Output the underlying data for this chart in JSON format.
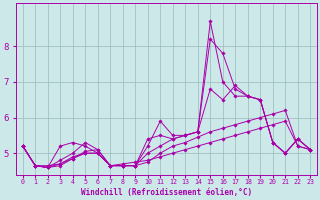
{
  "xlabel": "Windchill (Refroidissement éolien,°C)",
  "background_color": "#cce8e8",
  "line_color": "#aa00aa",
  "grid_color": "#99bbbb",
  "x": [
    0,
    1,
    2,
    3,
    4,
    5,
    6,
    7,
    8,
    9,
    10,
    11,
    12,
    13,
    14,
    15,
    16,
    17,
    18,
    19,
    20,
    21,
    22,
    23
  ],
  "series": [
    [
      5.2,
      4.65,
      4.65,
      4.7,
      4.9,
      5.0,
      5.0,
      4.65,
      4.7,
      4.75,
      4.8,
      4.9,
      5.0,
      5.1,
      5.2,
      5.3,
      5.4,
      5.5,
      5.6,
      5.7,
      5.8,
      5.9,
      5.2,
      5.1
    ],
    [
      5.2,
      4.65,
      4.6,
      4.65,
      4.85,
      5.05,
      5.1,
      4.65,
      4.65,
      4.65,
      5.0,
      5.2,
      5.4,
      5.5,
      5.6,
      8.2,
      7.8,
      6.8,
      6.6,
      6.5,
      5.3,
      5.0,
      5.4,
      5.1
    ],
    [
      5.2,
      4.65,
      4.6,
      5.2,
      5.3,
      5.2,
      5.0,
      4.65,
      4.65,
      4.65,
      5.2,
      5.9,
      5.5,
      5.5,
      5.6,
      8.7,
      7.0,
      6.6,
      6.6,
      6.5,
      5.3,
      5.0,
      5.4,
      5.1
    ],
    [
      5.2,
      4.65,
      4.6,
      4.8,
      5.0,
      5.3,
      5.1,
      4.65,
      4.65,
      4.65,
      5.4,
      5.5,
      5.4,
      5.5,
      5.6,
      6.8,
      6.5,
      6.9,
      6.6,
      6.5,
      5.3,
      5.0,
      5.4,
      5.1
    ],
    [
      5.2,
      4.65,
      4.6,
      4.7,
      4.85,
      5.0,
      5.0,
      4.65,
      4.65,
      4.65,
      4.75,
      5.0,
      5.2,
      5.3,
      5.45,
      5.6,
      5.7,
      5.8,
      5.9,
      6.0,
      6.1,
      6.2,
      5.2,
      5.1
    ]
  ],
  "ylim": [
    4.4,
    9.2
  ],
  "yticks": [
    5,
    6,
    7,
    8
  ],
  "xlim": [
    -0.5,
    23.5
  ],
  "xlabel_fontsize": 5.5,
  "tick_fontsize_x": 4.8,
  "tick_fontsize_y": 6.5
}
